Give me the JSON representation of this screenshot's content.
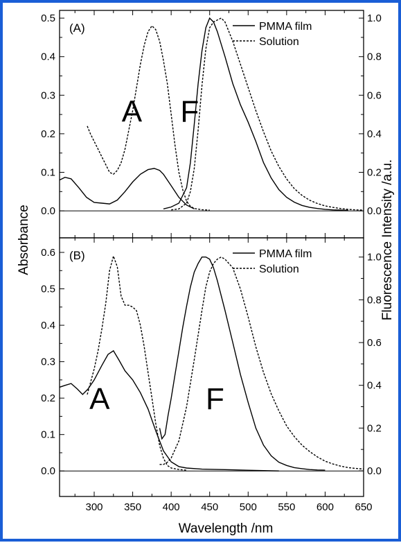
{
  "colors": {
    "frame": "#1a5ed6",
    "ink": "#000000",
    "background": "#ffffff"
  },
  "chart_data": {
    "type": "line",
    "xlabel": "Wavelength /nm",
    "ylabel_left": "Absorbance",
    "ylabel_right": "Fluorescence Intensity /a.u.",
    "xlim": [
      255,
      650
    ],
    "x_ticks": [
      300,
      350,
      400,
      450,
      500,
      550,
      600,
      650
    ],
    "grid": false,
    "legend_position": "top-right",
    "panels": [
      {
        "tag": "(A)",
        "abs_ylim": [
          -0.07,
          0.52
        ],
        "abs_ticks": [
          0.0,
          0.1,
          0.2,
          0.3,
          0.4,
          0.5
        ],
        "fl_ylim": [
          -0.14,
          1.04
        ],
        "fl_ticks": [
          0.0,
          0.2,
          0.4,
          0.6,
          0.8,
          1.0
        ],
        "region_labels": [
          {
            "text": "A",
            "x": 349,
            "y": 0.26
          },
          {
            "text": "F",
            "x": 424,
            "y": 0.26
          }
        ],
        "legend": [
          {
            "label": "PMMA film",
            "style": "solid"
          },
          {
            "label": "Solution",
            "style": "dashed"
          }
        ],
        "series": [
          {
            "name": "PMMA film",
            "kind": "absorbance",
            "style": "solid",
            "x": [
              255,
              262,
              270,
              280,
              290,
              300,
              310,
              320,
              330,
              340,
              350,
              360,
              370,
              378,
              385,
              390,
              400,
              410,
              420,
              430
            ],
            "y": [
              0.08,
              0.087,
              0.083,
              0.06,
              0.035,
              0.022,
              0.02,
              0.018,
              0.028,
              0.05,
              0.075,
              0.095,
              0.107,
              0.11,
              0.105,
              0.095,
              0.065,
              0.035,
              0.015,
              0.005
            ]
          },
          {
            "name": "Solution",
            "kind": "absorbance",
            "style": "dashed",
            "x": [
              291,
              295,
              300,
              305,
              310,
              315,
              320,
              325,
              330,
              335,
              340,
              350,
              360,
              365,
              370,
              375,
              380,
              385,
              390,
              395,
              400,
              405,
              410,
              415,
              420,
              425,
              430,
              440,
              450
            ],
            "y": [
              0.22,
              0.2,
              0.18,
              0.16,
              0.14,
              0.12,
              0.1,
              0.095,
              0.105,
              0.125,
              0.16,
              0.26,
              0.38,
              0.43,
              0.465,
              0.48,
              0.47,
              0.44,
              0.39,
              0.33,
              0.25,
              0.17,
              0.1,
              0.055,
              0.025,
              0.012,
              0.006,
              0.003,
              0.002
            ]
          },
          {
            "name": "PMMA film",
            "kind": "fluorescence",
            "style": "solid",
            "x": [
              390,
              400,
              410,
              420,
              425,
              430,
              435,
              440,
              445,
              450,
              455,
              460,
              470,
              480,
              490,
              500,
              510,
              520,
              530,
              540,
              550,
              560,
              570,
              580,
              590,
              600,
              610,
              620,
              630
            ],
            "y": [
              0.01,
              0.02,
              0.04,
              0.12,
              0.25,
              0.45,
              0.66,
              0.83,
              0.95,
              1.0,
              0.98,
              0.93,
              0.8,
              0.66,
              0.55,
              0.46,
              0.36,
              0.25,
              0.17,
              0.11,
              0.07,
              0.045,
              0.028,
              0.018,
              0.012,
              0.008,
              0.005,
              0.004,
              0.003
            ]
          },
          {
            "name": "Solution",
            "kind": "fluorescence",
            "style": "dashed",
            "x": [
              400,
              410,
              420,
              425,
              430,
              435,
              440,
              445,
              450,
              455,
              460,
              465,
              470,
              480,
              490,
              500,
              510,
              520,
              530,
              540,
              550,
              560,
              570,
              580,
              590,
              600,
              610,
              620,
              630,
              640,
              650
            ],
            "y": [
              0.005,
              0.01,
              0.04,
              0.1,
              0.22,
              0.42,
              0.65,
              0.84,
              0.95,
              0.98,
              0.99,
              1.0,
              0.98,
              0.88,
              0.76,
              0.64,
              0.52,
              0.41,
              0.31,
              0.23,
              0.165,
              0.115,
              0.08,
              0.055,
              0.038,
              0.026,
              0.018,
              0.012,
              0.008,
              0.005,
              0.004
            ]
          }
        ]
      },
      {
        "tag": "(B)",
        "abs_ylim": [
          -0.07,
          0.64
        ],
        "abs_ticks": [
          0.0,
          0.1,
          0.2,
          0.3,
          0.4,
          0.5,
          0.6
        ],
        "fl_ylim": [
          -0.12,
          1.09
        ],
        "fl_ticks": [
          0.0,
          0.2,
          0.4,
          0.6,
          0.8,
          1.0
        ],
        "region_labels": [
          {
            "text": "A",
            "x": 307,
            "y": 0.2
          },
          {
            "text": "F",
            "x": 457,
            "y": 0.2
          }
        ],
        "legend": [
          {
            "label": "PMMA film",
            "style": "solid"
          },
          {
            "label": "Solution",
            "style": "dashed"
          }
        ],
        "series": [
          {
            "name": "PMMA film",
            "kind": "absorbance",
            "style": "solid",
            "x": [
              255,
              262,
              270,
              278,
              285,
              292,
              300,
              310,
              318,
              325,
              332,
              340,
              350,
              360,
              370,
              380,
              390,
              400,
              410,
              420,
              440,
              460,
              480,
              500,
              520,
              540
            ],
            "y": [
              0.23,
              0.235,
              0.24,
              0.225,
              0.21,
              0.225,
              0.25,
              0.29,
              0.32,
              0.33,
              0.305,
              0.275,
              0.25,
              0.215,
              0.17,
              0.11,
              0.055,
              0.025,
              0.012,
              0.008,
              0.005,
              0.004,
              0.003,
              0.002,
              0.001,
              0.0
            ]
          },
          {
            "name": "Solution",
            "kind": "absorbance",
            "style": "dashed",
            "x": [
              291,
              300,
              305,
              310,
              315,
              320,
              325,
              330,
              335,
              340,
              345,
              350,
              355,
              360,
              365,
              370,
              375,
              380,
              385,
              390,
              395,
              400,
              410,
              420
            ],
            "y": [
              0.21,
              0.28,
              0.33,
              0.39,
              0.46,
              0.55,
              0.59,
              0.56,
              0.48,
              0.455,
              0.455,
              0.45,
              0.44,
              0.4,
              0.34,
              0.27,
              0.2,
              0.13,
              0.07,
              0.035,
              0.015,
              0.008,
              0.004,
              0.002
            ]
          },
          {
            "name": "PMMA film",
            "kind": "fluorescence",
            "style": "solid",
            "x": [
              385,
              388,
              392,
              396,
              400,
              405,
              410,
              415,
              420,
              425,
              430,
              435,
              440,
              445,
              450,
              455,
              460,
              470,
              480,
              490,
              500,
              510,
              520,
              530,
              540,
              550,
              560,
              570,
              580,
              590,
              600
            ],
            "y": [
              0.2,
              0.15,
              0.17,
              0.26,
              0.34,
              0.45,
              0.56,
              0.67,
              0.77,
              0.86,
              0.93,
              0.97,
              1.0,
              1.0,
              0.99,
              0.95,
              0.89,
              0.75,
              0.6,
              0.45,
              0.32,
              0.2,
              0.12,
              0.07,
              0.04,
              0.025,
              0.015,
              0.01,
              0.006,
              0.004,
              0.003
            ]
          },
          {
            "name": "Solution",
            "kind": "fluorescence",
            "style": "dashed",
            "x": [
              385,
              390,
              395,
              400,
              410,
              420,
              430,
              440,
              445,
              450,
              455,
              460,
              465,
              470,
              480,
              490,
              500,
              510,
              520,
              530,
              540,
              550,
              560,
              570,
              580,
              590,
              600,
              610,
              620,
              630,
              640,
              650
            ],
            "y": [
              0.03,
              0.03,
              0.04,
              0.06,
              0.14,
              0.3,
              0.52,
              0.75,
              0.86,
              0.93,
              0.97,
              0.99,
              1.0,
              0.99,
              0.95,
              0.85,
              0.72,
              0.58,
              0.46,
              0.36,
              0.28,
              0.21,
              0.16,
              0.12,
              0.09,
              0.065,
              0.045,
              0.032,
              0.022,
              0.015,
              0.011,
              0.008
            ]
          }
        ]
      }
    ]
  }
}
